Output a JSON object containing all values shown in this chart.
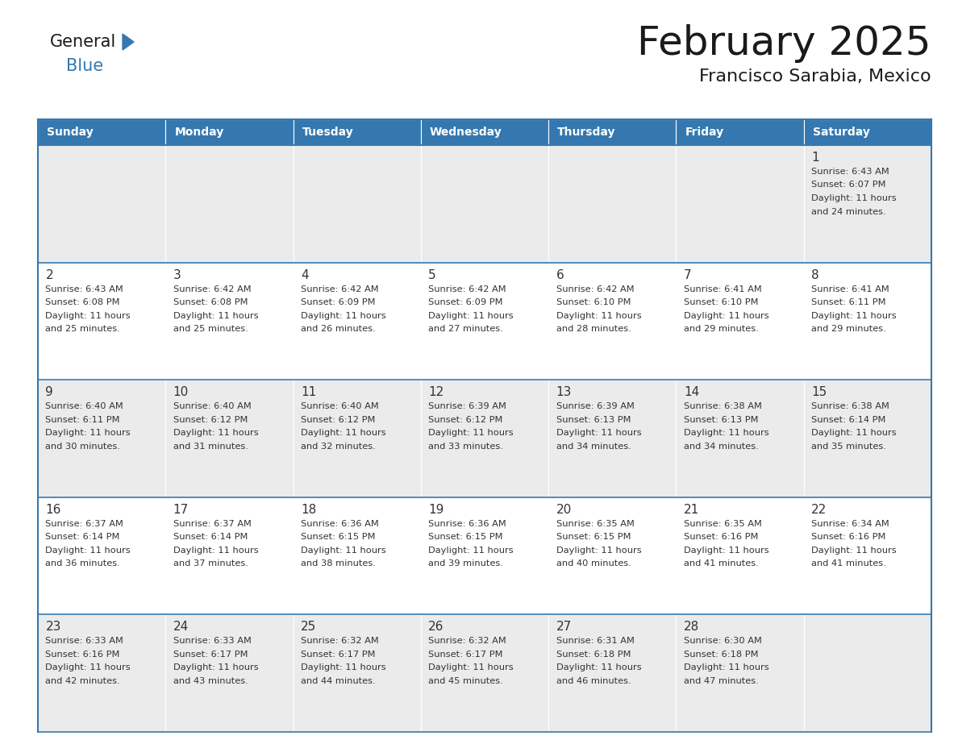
{
  "title": "February 2025",
  "subtitle": "Francisco Sarabia, Mexico",
  "header_color": "#3578b0",
  "header_text_color": "#ffffff",
  "days_of_week": [
    "Sunday",
    "Monday",
    "Tuesday",
    "Wednesday",
    "Thursday",
    "Friday",
    "Saturday"
  ],
  "cell_bg_odd": "#ebebeb",
  "cell_bg_even": "#ffffff",
  "border_color": "#3578b0",
  "day_number_color": "#333333",
  "info_text_color": "#333333",
  "calendar_data": [
    [
      null,
      null,
      null,
      null,
      null,
      null,
      {
        "day": 1,
        "sunrise": "6:43 AM",
        "sunset": "6:07 PM",
        "daylight": "11 hours and 24 minutes."
      }
    ],
    [
      {
        "day": 2,
        "sunrise": "6:43 AM",
        "sunset": "6:08 PM",
        "daylight": "11 hours and 25 minutes."
      },
      {
        "day": 3,
        "sunrise": "6:42 AM",
        "sunset": "6:08 PM",
        "daylight": "11 hours and 25 minutes."
      },
      {
        "day": 4,
        "sunrise": "6:42 AM",
        "sunset": "6:09 PM",
        "daylight": "11 hours and 26 minutes."
      },
      {
        "day": 5,
        "sunrise": "6:42 AM",
        "sunset": "6:09 PM",
        "daylight": "11 hours and 27 minutes."
      },
      {
        "day": 6,
        "sunrise": "6:42 AM",
        "sunset": "6:10 PM",
        "daylight": "11 hours and 28 minutes."
      },
      {
        "day": 7,
        "sunrise": "6:41 AM",
        "sunset": "6:10 PM",
        "daylight": "11 hours and 29 minutes."
      },
      {
        "day": 8,
        "sunrise": "6:41 AM",
        "sunset": "6:11 PM",
        "daylight": "11 hours and 29 minutes."
      }
    ],
    [
      {
        "day": 9,
        "sunrise": "6:40 AM",
        "sunset": "6:11 PM",
        "daylight": "11 hours and 30 minutes."
      },
      {
        "day": 10,
        "sunrise": "6:40 AM",
        "sunset": "6:12 PM",
        "daylight": "11 hours and 31 minutes."
      },
      {
        "day": 11,
        "sunrise": "6:40 AM",
        "sunset": "6:12 PM",
        "daylight": "11 hours and 32 minutes."
      },
      {
        "day": 12,
        "sunrise": "6:39 AM",
        "sunset": "6:12 PM",
        "daylight": "11 hours and 33 minutes."
      },
      {
        "day": 13,
        "sunrise": "6:39 AM",
        "sunset": "6:13 PM",
        "daylight": "11 hours and 34 minutes."
      },
      {
        "day": 14,
        "sunrise": "6:38 AM",
        "sunset": "6:13 PM",
        "daylight": "11 hours and 34 minutes."
      },
      {
        "day": 15,
        "sunrise": "6:38 AM",
        "sunset": "6:14 PM",
        "daylight": "11 hours and 35 minutes."
      }
    ],
    [
      {
        "day": 16,
        "sunrise": "6:37 AM",
        "sunset": "6:14 PM",
        "daylight": "11 hours and 36 minutes."
      },
      {
        "day": 17,
        "sunrise": "6:37 AM",
        "sunset": "6:14 PM",
        "daylight": "11 hours and 37 minutes."
      },
      {
        "day": 18,
        "sunrise": "6:36 AM",
        "sunset": "6:15 PM",
        "daylight": "11 hours and 38 minutes."
      },
      {
        "day": 19,
        "sunrise": "6:36 AM",
        "sunset": "6:15 PM",
        "daylight": "11 hours and 39 minutes."
      },
      {
        "day": 20,
        "sunrise": "6:35 AM",
        "sunset": "6:15 PM",
        "daylight": "11 hours and 40 minutes."
      },
      {
        "day": 21,
        "sunrise": "6:35 AM",
        "sunset": "6:16 PM",
        "daylight": "11 hours and 41 minutes."
      },
      {
        "day": 22,
        "sunrise": "6:34 AM",
        "sunset": "6:16 PM",
        "daylight": "11 hours and 41 minutes."
      }
    ],
    [
      {
        "day": 23,
        "sunrise": "6:33 AM",
        "sunset": "6:16 PM",
        "daylight": "11 hours and 42 minutes."
      },
      {
        "day": 24,
        "sunrise": "6:33 AM",
        "sunset": "6:17 PM",
        "daylight": "11 hours and 43 minutes."
      },
      {
        "day": 25,
        "sunrise": "6:32 AM",
        "sunset": "6:17 PM",
        "daylight": "11 hours and 44 minutes."
      },
      {
        "day": 26,
        "sunrise": "6:32 AM",
        "sunset": "6:17 PM",
        "daylight": "11 hours and 45 minutes."
      },
      {
        "day": 27,
        "sunrise": "6:31 AM",
        "sunset": "6:18 PM",
        "daylight": "11 hours and 46 minutes."
      },
      {
        "day": 28,
        "sunrise": "6:30 AM",
        "sunset": "6:18 PM",
        "daylight": "11 hours and 47 minutes."
      },
      null
    ]
  ]
}
